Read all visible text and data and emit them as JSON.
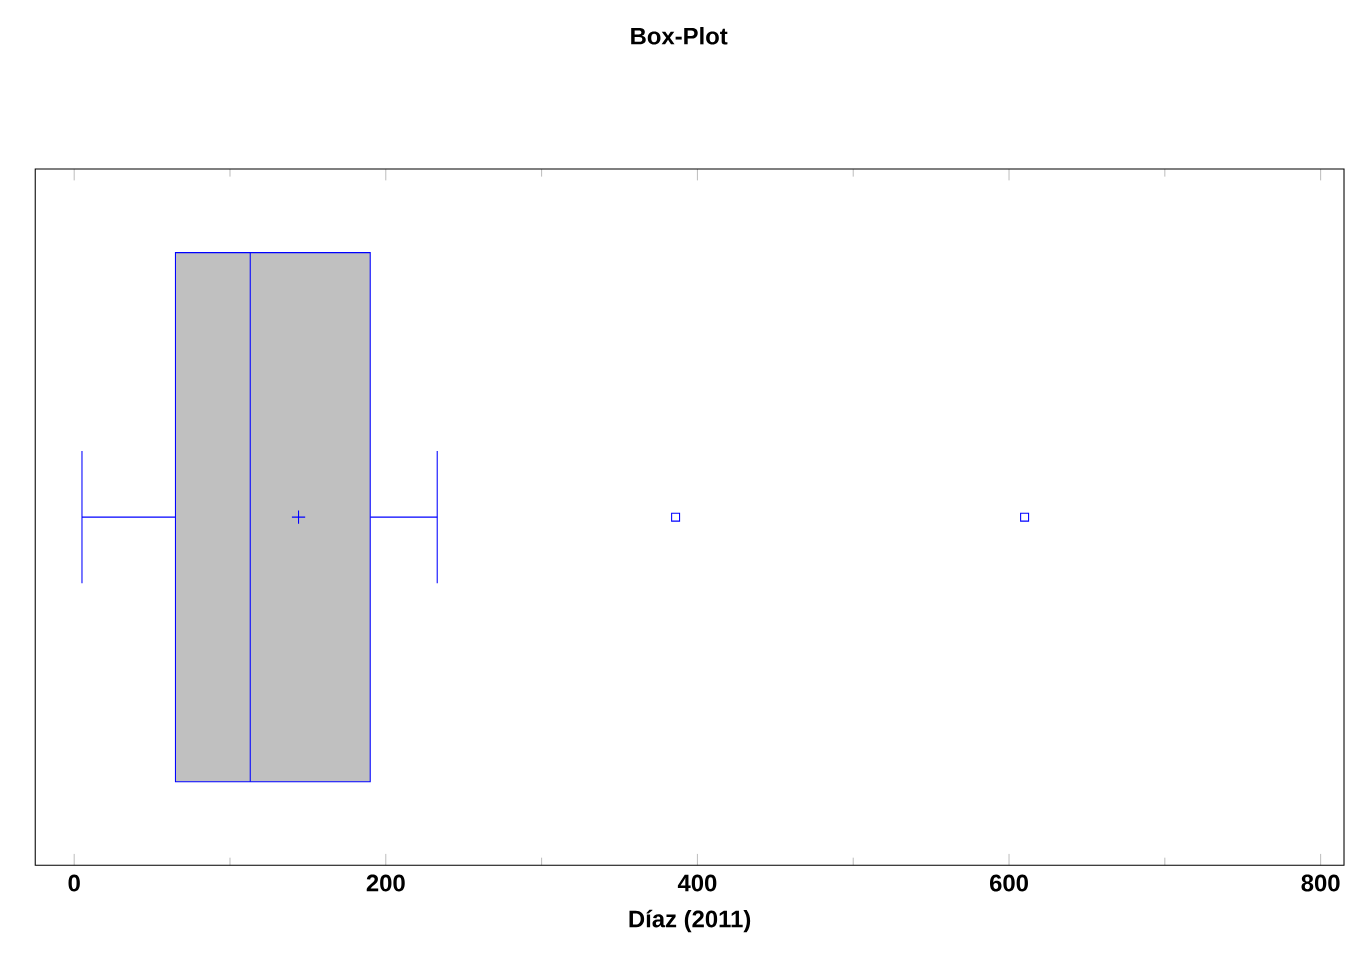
{
  "chart_data": {
    "type": "box",
    "title": "Box-Plot",
    "xlabel": "Díaz (2011)",
    "orientation": "horizontal",
    "categories": [
      null
    ],
    "series": [
      {
        "color": "#0000ff",
        "colors": [
          "#c0c0c0"
        ],
        "boxes": [
          {
            "low": 5,
            "q1": 65,
            "median": 113,
            "q3": 190,
            "high": 233,
            "mean": 144,
            "outliers": [
              386,
              610
            ]
          }
        ]
      }
    ],
    "xlim": [
      -25,
      815
    ],
    "xticks": [
      0,
      200,
      400,
      600,
      800
    ],
    "tick_labels": "x",
    "grid": false
  }
}
